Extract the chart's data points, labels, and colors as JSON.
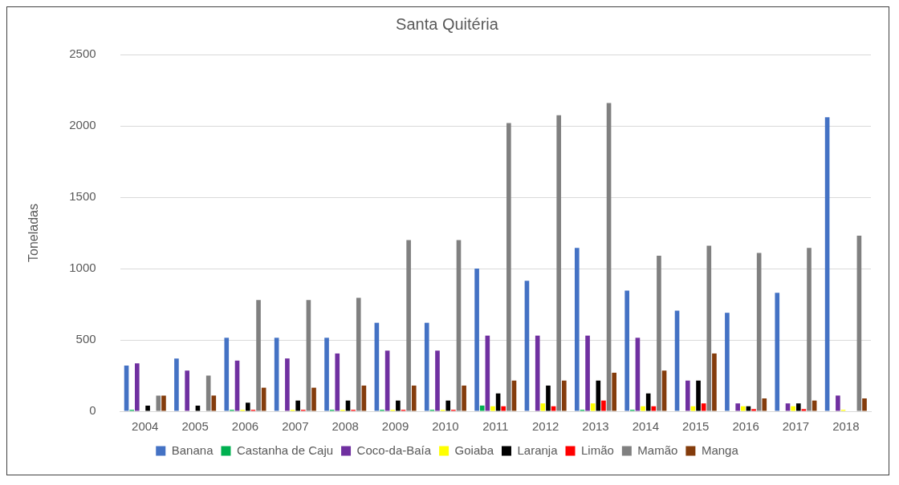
{
  "chart_data": {
    "type": "bar",
    "title": "Santa Quitéria",
    "ylabel": "Toneladas",
    "categories": [
      "2004",
      "2005",
      "2006",
      "2007",
      "2008",
      "2009",
      "2010",
      "2011",
      "2012",
      "2013",
      "2014",
      "2015",
      "2016",
      "2017",
      "2018"
    ],
    "series": [
      {
        "name": "Banana",
        "color": "#4472c4",
        "values": [
          320,
          370,
          515,
          515,
          515,
          620,
          620,
          1000,
          915,
          1145,
          845,
          705,
          690,
          830,
          2060
        ]
      },
      {
        "name": "Castanha de Caju",
        "color": "#00b050",
        "values": [
          10,
          null,
          10,
          null,
          10,
          10,
          10,
          40,
          null,
          10,
          10,
          null,
          null,
          null,
          null
        ]
      },
      {
        "name": "Coco-da-Baía",
        "color": "#7030a0",
        "values": [
          335,
          285,
          355,
          370,
          405,
          425,
          425,
          530,
          530,
          530,
          515,
          215,
          55,
          55,
          110
        ]
      },
      {
        "name": "Goiaba",
        "color": "#ffff00",
        "values": [
          null,
          null,
          10,
          10,
          10,
          10,
          10,
          35,
          55,
          55,
          35,
          35,
          35,
          35,
          10
        ]
      },
      {
        "name": "Laranja",
        "color": "#000000",
        "values": [
          40,
          40,
          60,
          75,
          75,
          75,
          75,
          125,
          180,
          215,
          125,
          215,
          35,
          55,
          null
        ]
      },
      {
        "name": "Limão",
        "color": "#ff0000",
        "values": [
          null,
          null,
          10,
          10,
          10,
          10,
          10,
          35,
          35,
          75,
          35,
          55,
          15,
          15,
          null
        ]
      },
      {
        "name": "Mamão",
        "color": "#808080",
        "values": [
          110,
          250,
          780,
          780,
          795,
          1200,
          1200,
          2020,
          2075,
          2160,
          1090,
          1160,
          1110,
          1145,
          1230
        ]
      },
      {
        "name": "Manga",
        "color": "#843c0c",
        "values": [
          110,
          110,
          165,
          165,
          180,
          180,
          180,
          215,
          215,
          270,
          285,
          405,
          90,
          75,
          90
        ]
      }
    ],
    "ylim": [
      0,
      2500
    ],
    "yticks": [
      0,
      500,
      1000,
      1500,
      2000,
      2500
    ],
    "grid": "y",
    "legend": "bottom"
  }
}
